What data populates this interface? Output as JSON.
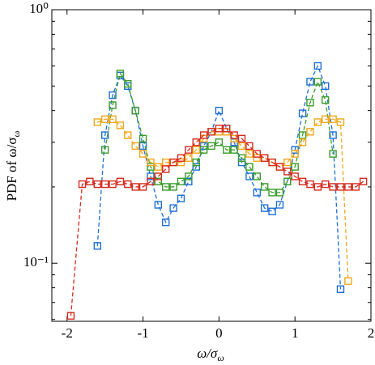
{
  "chart_data": {
    "type": "line",
    "log_y": true,
    "xlabel": "ω/σ",
    "xlabel_subscript": "ω",
    "ylabel": "PDF of ω/σ",
    "ylabel_subscript": "ω",
    "xlim": [
      -2.2,
      2.0
    ],
    "xticks": [
      -2,
      -1,
      0,
      1,
      2
    ],
    "ylim": [
      0.059,
      1
    ],
    "yticks": [
      {
        "value": 1,
        "label": "10⁰"
      },
      {
        "value": 0.1,
        "label": "10⁻¹"
      }
    ],
    "yminor_ticks": [
      0.06,
      0.07,
      0.08,
      0.09,
      0.2,
      0.3,
      0.4,
      0.5,
      0.6,
      0.7,
      0.8,
      0.9
    ],
    "series": [
      {
        "color": "#1f6fd6",
        "x": [
          -1.6,
          -1.5,
          -1.4,
          -1.3,
          -1.2,
          -1.1,
          -1.0,
          -0.9,
          -0.8,
          -0.7,
          -0.6,
          -0.5,
          -0.4,
          -0.3,
          -0.2,
          -0.1,
          0,
          0.1,
          0.2,
          0.3,
          0.4,
          0.5,
          0.6,
          0.7,
          0.8,
          0.9,
          1.0,
          1.1,
          1.2,
          1.3,
          1.4,
          1.5,
          1.6
        ],
        "values": [
          0.117,
          0.32,
          0.46,
          0.55,
          0.5,
          0.4,
          0.29,
          0.22,
          0.17,
          0.145,
          0.165,
          0.18,
          0.21,
          0.24,
          0.29,
          0.33,
          0.4,
          0.34,
          0.3,
          0.25,
          0.22,
          0.19,
          0.165,
          0.16,
          0.17,
          0.21,
          0.28,
          0.39,
          0.52,
          0.6,
          0.5,
          0.32,
          0.079
        ]
      },
      {
        "color": "#3a9c2a",
        "x": [
          -1.5,
          -1.4,
          -1.3,
          -1.2,
          -1.1,
          -1.0,
          -0.9,
          -0.8,
          -0.7,
          -0.6,
          -0.5,
          -0.4,
          -0.3,
          -0.2,
          -0.1,
          0,
          0.1,
          0.2,
          0.3,
          0.4,
          0.5,
          0.6,
          0.7,
          0.8,
          0.9,
          1.0,
          1.1,
          1.2,
          1.3,
          1.4,
          1.5
        ],
        "values": [
          0.28,
          0.42,
          0.56,
          0.51,
          0.4,
          0.31,
          0.24,
          0.21,
          0.2,
          0.2,
          0.21,
          0.22,
          0.25,
          0.28,
          0.29,
          0.3,
          0.28,
          0.28,
          0.26,
          0.24,
          0.22,
          0.2,
          0.19,
          0.19,
          0.21,
          0.24,
          0.32,
          0.43,
          0.52,
          0.44,
          0.27
        ]
      },
      {
        "color": "#f0a81e",
        "x": [
          -1.6,
          -1.5,
          -1.4,
          -1.3,
          -1.2,
          -1.1,
          -1.0,
          -0.9,
          -0.8,
          -0.7,
          -0.6,
          -0.5,
          -0.4,
          -0.3,
          -0.2,
          -0.1,
          0,
          0.1,
          0.2,
          0.3,
          0.4,
          0.5,
          0.6,
          0.7,
          0.8,
          0.9,
          1.0,
          1.1,
          1.2,
          1.3,
          1.4,
          1.5,
          1.6,
          1.7
        ],
        "values": [
          0.36,
          0.37,
          0.37,
          0.35,
          0.32,
          0.29,
          0.27,
          0.25,
          0.24,
          0.25,
          0.25,
          0.25,
          0.26,
          0.28,
          0.31,
          0.33,
          0.33,
          0.33,
          0.31,
          0.29,
          0.27,
          0.26,
          0.26,
          0.25,
          0.24,
          0.25,
          0.27,
          0.3,
          0.33,
          0.36,
          0.37,
          0.37,
          0.36,
          0.085
        ]
      },
      {
        "color": "#d62b1f",
        "x": [
          -1.95,
          -1.8,
          -1.7,
          -1.6,
          -1.5,
          -1.4,
          -1.3,
          -1.2,
          -1.1,
          -1.0,
          -0.9,
          -0.8,
          -0.7,
          -0.6,
          -0.5,
          -0.4,
          -0.3,
          -0.2,
          -0.1,
          0,
          0.1,
          0.2,
          0.3,
          0.4,
          0.5,
          0.6,
          0.7,
          0.8,
          0.9,
          1.0,
          1.1,
          1.2,
          1.3,
          1.4,
          1.5,
          1.6,
          1.7,
          1.8,
          1.9
        ],
        "values": [
          0.062,
          0.205,
          0.21,
          0.205,
          0.205,
          0.205,
          0.21,
          0.205,
          0.2,
          0.2,
          0.21,
          0.22,
          0.235,
          0.25,
          0.26,
          0.28,
          0.3,
          0.32,
          0.33,
          0.34,
          0.34,
          0.32,
          0.31,
          0.29,
          0.27,
          0.26,
          0.25,
          0.24,
          0.23,
          0.22,
          0.21,
          0.205,
          0.2,
          0.205,
          0.2,
          0.2,
          0.2,
          0.2,
          0.21
        ]
      }
    ]
  }
}
